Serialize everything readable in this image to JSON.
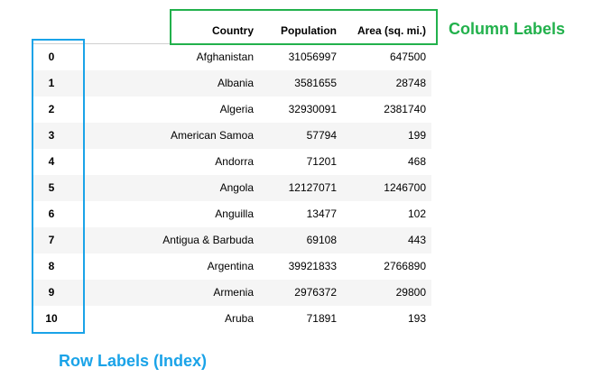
{
  "columns": [
    "Country",
    "Population",
    "Area (sq. mi.)"
  ],
  "rows": [
    {
      "index": "0",
      "country": "Afghanistan",
      "population": "31056997",
      "area": "647500"
    },
    {
      "index": "1",
      "country": "Albania",
      "population": "3581655",
      "area": "28748"
    },
    {
      "index": "2",
      "country": "Algeria",
      "population": "32930091",
      "area": "2381740"
    },
    {
      "index": "3",
      "country": "American Samoa",
      "population": "57794",
      "area": "199"
    },
    {
      "index": "4",
      "country": "Andorra",
      "population": "71201",
      "area": "468"
    },
    {
      "index": "5",
      "country": "Angola",
      "population": "12127071",
      "area": "1246700"
    },
    {
      "index": "6",
      "country": "Anguilla",
      "population": "13477",
      "area": "102"
    },
    {
      "index": "7",
      "country": "Antigua & Barbuda",
      "population": "69108",
      "area": "443"
    },
    {
      "index": "8",
      "country": "Argentina",
      "population": "39921833",
      "area": "2766890"
    },
    {
      "index": "9",
      "country": "Armenia",
      "population": "2976372",
      "area": "29800"
    },
    {
      "index": "10",
      "country": "Aruba",
      "population": "71891",
      "area": "193"
    }
  ],
  "annotations": {
    "column_labels": "Column Labels",
    "row_labels": "Row Labels (Index)"
  },
  "colors": {
    "column_accent": "#22b14c",
    "row_accent": "#1aa3e8",
    "stripe": "#f5f5f5"
  }
}
